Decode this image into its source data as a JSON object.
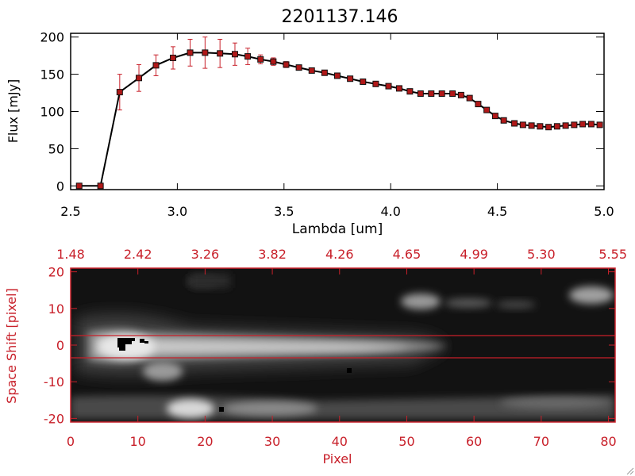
{
  "title": "2201137.146",
  "chart_data": [
    {
      "type": "line",
      "xlabel": "Lambda [um]",
      "ylabel": "Flux [mJy]",
      "xlim": [
        2.5,
        5.0
      ],
      "ylim": [
        -5,
        205
      ],
      "xticks": [
        "2.5",
        "3.0",
        "3.5",
        "4.0",
        "4.5",
        "5.0"
      ],
      "yticks": [
        "0",
        "50",
        "100",
        "150",
        "200"
      ],
      "line_color": "#000000",
      "marker_color": "#b01818",
      "errorbar_color": "#c8202a",
      "series": [
        {
          "x": [
            2.54,
            2.64,
            2.73,
            2.82,
            2.9,
            2.98,
            3.06,
            3.13,
            3.2,
            3.27,
            3.33,
            3.39,
            3.45,
            3.51,
            3.57,
            3.63,
            3.69,
            3.75,
            3.81,
            3.87,
            3.93,
            3.99,
            4.04,
            4.09,
            4.14,
            4.19,
            4.24,
            4.29,
            4.33,
            4.37,
            4.41,
            4.45,
            4.49,
            4.53,
            4.58,
            4.62,
            4.66,
            4.7,
            4.74,
            4.78,
            4.82,
            4.86,
            4.9,
            4.94,
            4.98
          ],
          "y": [
            0,
            0,
            126,
            145,
            162,
            172,
            179,
            179,
            178,
            177,
            174,
            170,
            167,
            163,
            159,
            155,
            152,
            148,
            144,
            140,
            137,
            134,
            131,
            127,
            124,
            124,
            124,
            124,
            122,
            118,
            110,
            102,
            94,
            88,
            84,
            82,
            81,
            80,
            79,
            80,
            81,
            82,
            83,
            83,
            82
          ],
          "err": [
            0,
            0,
            24,
            18,
            14,
            15,
            18,
            21,
            19,
            15,
            11,
            6,
            5,
            4,
            3,
            3,
            3,
            3,
            3,
            3,
            3,
            3,
            3,
            3,
            3,
            3,
            3,
            3,
            3,
            3,
            3,
            3,
            3,
            3,
            3,
            3,
            3,
            3,
            3,
            3,
            3,
            3,
            3,
            3,
            3
          ]
        }
      ]
    },
    {
      "type": "heatmap",
      "xlabel": "Pixel",
      "ylabel": "Space Shift [pixel]",
      "xlim": [
        0,
        81
      ],
      "ylim": [
        -21,
        21
      ],
      "xticks": [
        "0",
        "10",
        "20",
        "30",
        "40",
        "50",
        "60",
        "70",
        "80"
      ],
      "yticks": [
        "20",
        "10",
        "0",
        "-10",
        "-20"
      ],
      "top_axis_ticks": [
        "1.48",
        "2.42",
        "3.26",
        "3.82",
        "4.26",
        "4.65",
        "4.99",
        "5.30",
        "5.55"
      ],
      "extraction_window": [
        -3,
        3
      ],
      "colormap": "grayscale",
      "axis_color": "#c8202a"
    }
  ]
}
